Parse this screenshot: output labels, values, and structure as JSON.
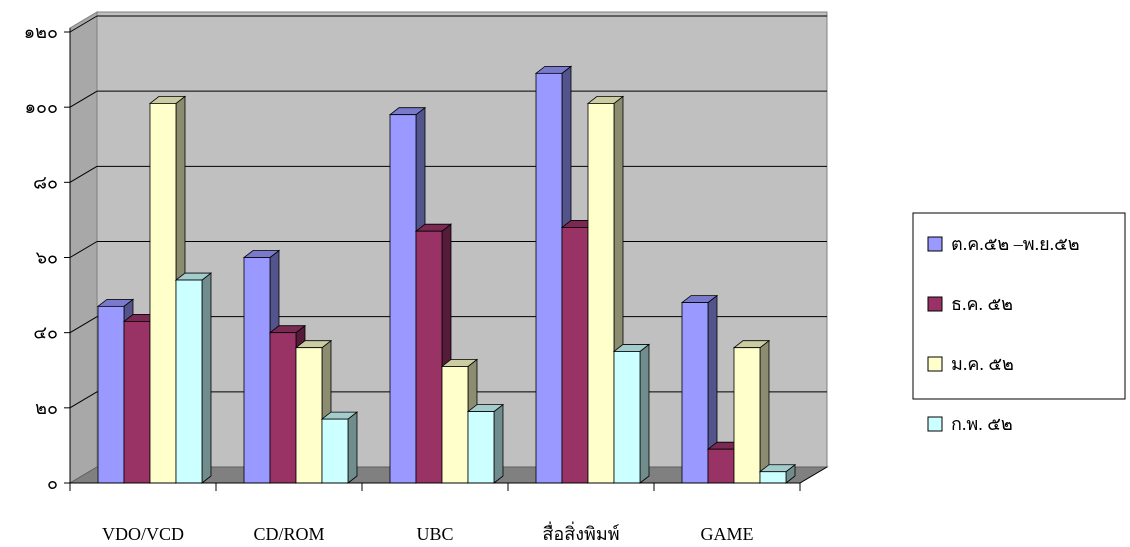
{
  "chart_data": {
    "type": "bar",
    "style": "3d-clustered-column",
    "categories": [
      "VDO/VCD",
      "CD/ROM",
      "UBC",
      "สื่อสิ่งพิมพ์",
      "GAME"
    ],
    "series": [
      {
        "name": "ต.ค.๕๒ –พ.ย.๕๒",
        "color": "#9999ff",
        "values": [
          47,
          60,
          98,
          109,
          48
        ]
      },
      {
        "name": "ธ.ค. ๕๒",
        "color": "#993366",
        "values": [
          43,
          40,
          67,
          68,
          9
        ]
      },
      {
        "name": "ม.ค. ๕๒",
        "color": "#ffffcc",
        "values": [
          101,
          36,
          31,
          101,
          36
        ]
      },
      {
        "name": "ก.พ. ๕๒",
        "color": "#ccffff",
        "values": [
          54,
          17,
          19,
          35,
          3
        ]
      }
    ],
    "yticks": [
      "๐",
      "๒๐",
      "๔๐",
      "๖๐",
      "๘๐",
      "๑๐๐",
      "๑๒๐"
    ],
    "ylim": [
      0,
      120
    ],
    "grid": true,
    "legend_position": "right",
    "wall_color": "#c0c0c0",
    "floor_color": "#808080"
  }
}
